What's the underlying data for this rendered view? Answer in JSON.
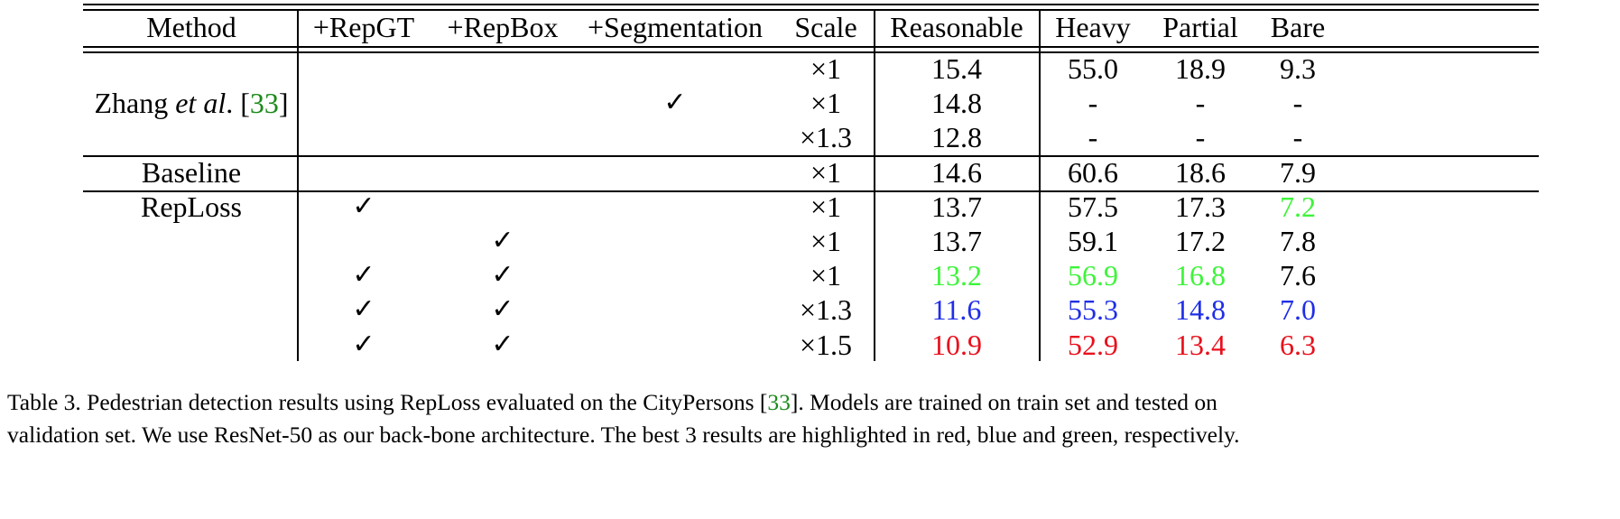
{
  "colors": {
    "first": "#e8101c",
    "second": "#1f2ee6",
    "third": "#3ef43a",
    "citation": "#1a8a1a"
  },
  "check_symbol": "✓",
  "headers": [
    "Method",
    "+RepGT",
    "+RepBox",
    "+Segmentation",
    "Scale",
    "Reasonable",
    "Heavy",
    "Partial",
    "Bare"
  ],
  "groups": [
    {
      "method": {
        "pre": "Zhang ",
        "em": "et al",
        "post": ". [",
        "cite": "33",
        "close": "]"
      },
      "rows": [
        0,
        1,
        2
      ]
    },
    {
      "method": {
        "pre": "Baseline",
        "em": "",
        "post": "",
        "cite": "",
        "close": ""
      },
      "rows": [
        3
      ]
    },
    {
      "method": {
        "pre": "RepLoss",
        "em": "",
        "post": "",
        "cite": "",
        "close": ""
      },
      "rows": [
        4,
        5,
        6,
        7,
        8
      ]
    }
  ],
  "rows": [
    {
      "repgt": false,
      "repbox": false,
      "seg": false,
      "scale": "×1",
      "reasonable": "15.4",
      "heavy": "55.0",
      "partial": "18.9",
      "bare": "9.3"
    },
    {
      "repgt": false,
      "repbox": false,
      "seg": true,
      "scale": "×1",
      "reasonable": "14.8",
      "heavy": "-",
      "partial": "-",
      "bare": "-"
    },
    {
      "repgt": false,
      "repbox": false,
      "seg": false,
      "scale": "×1.3",
      "reasonable": "12.8",
      "heavy": "-",
      "partial": "-",
      "bare": "-"
    },
    {
      "repgt": false,
      "repbox": false,
      "seg": false,
      "scale": "×1",
      "reasonable": "14.6",
      "heavy": "60.6",
      "partial": "18.6",
      "bare": "7.9"
    },
    {
      "repgt": true,
      "repbox": false,
      "seg": false,
      "scale": "×1",
      "reasonable": "13.7",
      "heavy": "57.5",
      "partial": "17.3",
      "bare": "7.2"
    },
    {
      "repgt": false,
      "repbox": true,
      "seg": false,
      "scale": "×1",
      "reasonable": "13.7",
      "heavy": "59.1",
      "partial": "17.2",
      "bare": "7.8"
    },
    {
      "repgt": true,
      "repbox": true,
      "seg": false,
      "scale": "×1",
      "reasonable": "13.2",
      "heavy": "56.9",
      "partial": "16.8",
      "bare": "7.6"
    },
    {
      "repgt": true,
      "repbox": true,
      "seg": false,
      "scale": "×1.3",
      "reasonable": "11.6",
      "heavy": "55.3",
      "partial": "14.8",
      "bare": "7.0"
    },
    {
      "repgt": true,
      "repbox": true,
      "seg": false,
      "scale": "×1.5",
      "reasonable": "10.9",
      "heavy": "52.9",
      "partial": "13.4",
      "bare": "6.3"
    }
  ],
  "highlights": {
    "reasonable": [
      "",
      "",
      "",
      "",
      "",
      "",
      "third",
      "second",
      "first"
    ],
    "heavy": [
      "",
      "",
      "",
      "",
      "",
      "",
      "third",
      "second",
      "first"
    ],
    "partial": [
      "",
      "",
      "",
      "",
      "",
      "",
      "third",
      "second",
      "first"
    ],
    "bare": [
      "",
      "",
      "",
      "",
      "third",
      "",
      "",
      "second",
      "first"
    ]
  },
  "caption": {
    "line1_pre": "Table 3. Pedestrian detection results using RepLoss evaluated on the CityPersons [",
    "line1_cite": "33",
    "line1_post": "].  Models are trained on train set and tested on",
    "line2": "validation set. We use ResNet-50 as our back-bone architecture. The best 3 results are highlighted in red, blue and green, respectively."
  }
}
